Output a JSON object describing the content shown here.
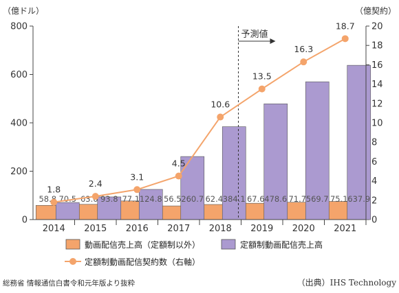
{
  "chart_data": {
    "type": "bar",
    "categories": [
      "2014",
      "2015",
      "2016",
      "2017",
      "2018",
      "2019",
      "2020",
      "2021"
    ],
    "series": [
      {
        "name": "動画配信売上高（定額制以外）",
        "kind": "bar",
        "axis": "left",
        "color": "#f4a46b",
        "values": [
          58.8,
          63.0,
          77.1,
          56.5,
          62.4,
          67.6,
          71.7,
          75.1
        ],
        "labels": [
          "58.8",
          "63.0",
          "77.1",
          "56.5",
          "62.4",
          "67.6",
          "71.7",
          "75.1"
        ]
      },
      {
        "name": "定額制動画配信売上高",
        "kind": "bar",
        "axis": "left",
        "color": "#ab9ad0",
        "values": [
          70.5,
          93.8,
          124.8,
          260.7,
          384.1,
          478.6,
          569.7,
          637.9
        ],
        "labels": [
          "70.5",
          "93.8",
          "124.8",
          "260.7",
          "384.1",
          "478.6",
          "569.7",
          "637.9"
        ]
      },
      {
        "name": "定額制動画配信契約数（右軸）",
        "kind": "line",
        "axis": "right",
        "color": "#f4a46b",
        "values": [
          1.8,
          2.4,
          3.1,
          4.5,
          10.6,
          13.5,
          16.3,
          18.7
        ],
        "labels": [
          "1.8",
          "2.4",
          "3.1",
          "4.5",
          "10.6",
          "13.5",
          "16.3",
          "18.7"
        ]
      }
    ],
    "y_left": {
      "unit_label": "（億ドル）",
      "ylim": [
        0,
        800
      ],
      "ticks": [
        "0",
        "200",
        "400",
        "600",
        "800"
      ]
    },
    "y_right": {
      "unit_label": "（億契約）",
      "ylim": [
        0,
        20
      ],
      "ticks": [
        "0",
        "2",
        "4",
        "6",
        "8",
        "10",
        "12",
        "14",
        "16",
        "18",
        "20"
      ]
    },
    "forecast": {
      "label": "予測値",
      "from_category": "2019"
    },
    "grid": false,
    "legend_position": "bottom"
  },
  "footer": {
    "left": "総務省 情報通信白書令和元年版より抜粋",
    "right": "（出典）IHS Technology"
  }
}
